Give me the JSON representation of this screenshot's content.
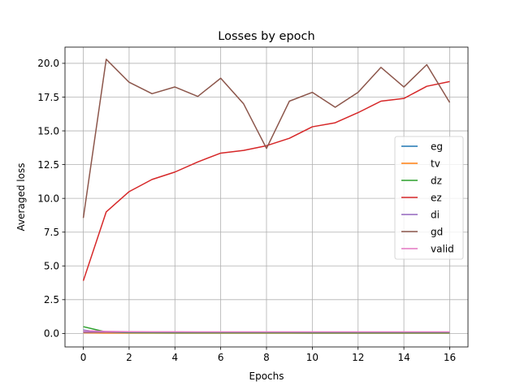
{
  "chart_data": {
    "type": "line",
    "title": "Losses by epoch",
    "xlabel": "Epochs",
    "ylabel": "Averaged loss",
    "xlim": [
      -0.8,
      16.8
    ],
    "ylim": [
      -1.0,
      21.2
    ],
    "xticks": [
      0,
      2,
      4,
      6,
      8,
      10,
      12,
      14,
      16
    ],
    "yticks": [
      0.0,
      2.5,
      5.0,
      7.5,
      10.0,
      12.5,
      15.0,
      17.5,
      20.0
    ],
    "xtick_labels": [
      "0",
      "2",
      "4",
      "6",
      "8",
      "10",
      "12",
      "14",
      "16"
    ],
    "ytick_labels": [
      "0.0",
      "2.5",
      "5.0",
      "7.5",
      "10.0",
      "12.5",
      "15.0",
      "17.5",
      "20.0"
    ],
    "grid": true,
    "legend_position": "center-right",
    "x": [
      0,
      1,
      2,
      3,
      4,
      5,
      6,
      7,
      8,
      9,
      10,
      11,
      12,
      13,
      14,
      15,
      16
    ],
    "series": [
      {
        "name": "eg",
        "color": "#1f77b4",
        "values": [
          0.25,
          0.05,
          0.04,
          0.04,
          0.03,
          0.03,
          0.03,
          0.03,
          0.03,
          0.03,
          0.02,
          0.02,
          0.02,
          0.02,
          0.02,
          0.02,
          0.02
        ]
      },
      {
        "name": "tv",
        "color": "#ff7f0e",
        "values": [
          0.05,
          0.03,
          0.03,
          0.03,
          0.03,
          0.03,
          0.03,
          0.03,
          0.03,
          0.03,
          0.03,
          0.03,
          0.03,
          0.03,
          0.03,
          0.03,
          0.03
        ]
      },
      {
        "name": "dz",
        "color": "#2ca02c",
        "values": [
          0.5,
          0.1,
          0.06,
          0.05,
          0.05,
          0.05,
          0.05,
          0.05,
          0.05,
          0.05,
          0.05,
          0.05,
          0.05,
          0.05,
          0.05,
          0.05,
          0.05
        ]
      },
      {
        "name": "ez",
        "color": "#d62728",
        "values": [
          3.9,
          9.0,
          10.5,
          11.4,
          11.95,
          12.7,
          13.35,
          13.55,
          13.9,
          14.45,
          15.3,
          15.6,
          16.35,
          17.2,
          17.4,
          18.3,
          18.65
        ]
      },
      {
        "name": "di",
        "color": "#9467bd",
        "values": [
          0.1,
          0.1,
          0.1,
          0.1,
          0.1,
          0.1,
          0.1,
          0.1,
          0.1,
          0.1,
          0.1,
          0.1,
          0.1,
          0.1,
          0.1,
          0.1,
          0.1
        ]
      },
      {
        "name": "gd",
        "color": "#8c564b",
        "values": [
          8.55,
          20.3,
          18.6,
          17.75,
          18.25,
          17.55,
          18.9,
          17.0,
          13.7,
          17.2,
          17.85,
          16.75,
          17.85,
          19.7,
          18.25,
          19.9,
          17.1
        ]
      },
      {
        "name": "valid",
        "color": "#e377c2",
        "values": [
          0.2,
          0.15,
          0.13,
          0.12,
          0.12,
          0.11,
          0.11,
          0.11,
          0.11,
          0.11,
          0.11,
          0.11,
          0.11,
          0.11,
          0.11,
          0.11,
          0.11
        ]
      }
    ]
  }
}
